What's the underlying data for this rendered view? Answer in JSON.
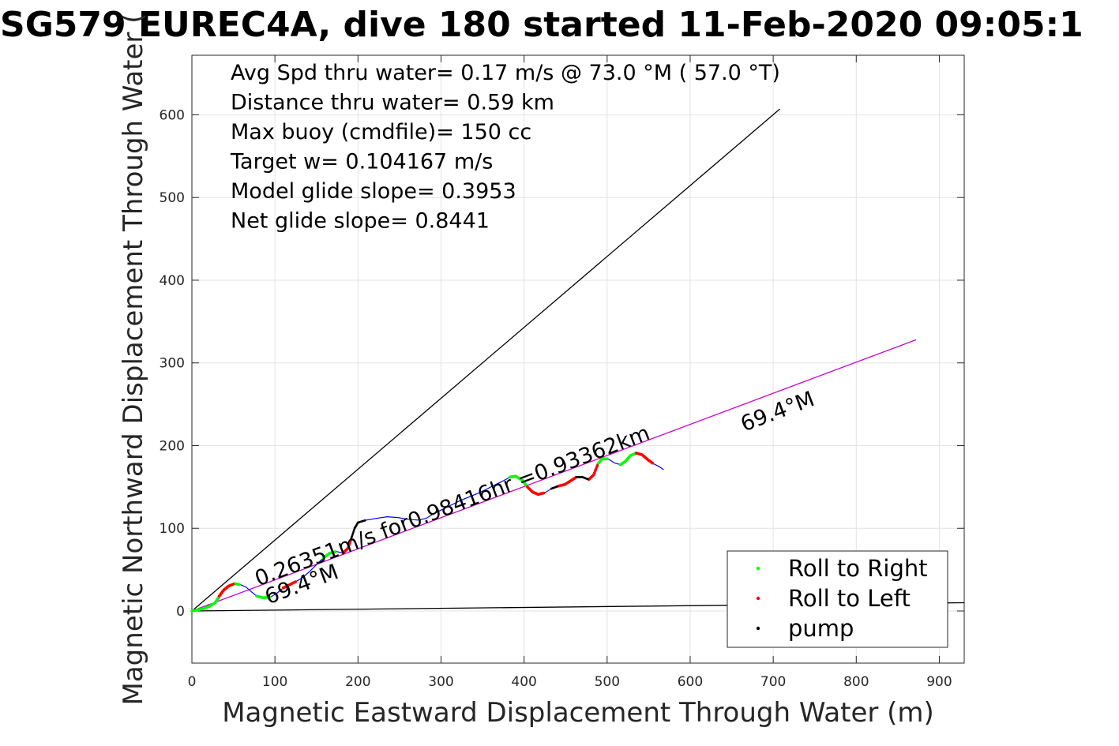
{
  "chart_data": {
    "type": "line",
    "title": "SG579 EUREC4A, dive 180 started 11-Feb-2020 09:05:1",
    "xlabel": "Magnetic Eastward Displacement Through Water (m)",
    "ylabel": "Magnetic Northward Displacement Through Water (",
    "xlim": [
      0,
      930
    ],
    "ylim": [
      -63,
      672
    ],
    "xticks": [
      0,
      100,
      200,
      300,
      400,
      500,
      600,
      700,
      800,
      900
    ],
    "yticks": [
      0,
      100,
      200,
      300,
      400,
      500,
      600
    ],
    "grid": true,
    "info_lines": [
      "Avg Spd thru water=  0.17 m/s @  73.0 °M ( 57.0 °T)",
      "Distance thru water=  0.59 km",
      "Max buoy (cmdfile)= 150 cc",
      "Target w= 0.104167 m/s",
      "Model glide slope= 0.3953",
      "Net glide slope= 0.8441"
    ],
    "annotations": [
      {
        "text": "0.26351m/s for0.98416hr =0.93362km",
        "x": 80,
        "y": 30,
        "angle": -20.6
      },
      {
        "text": "69.4°M",
        "x": 92,
        "y": 8,
        "angle": -20.6
      },
      {
        "text": "69.4°M",
        "x": 665,
        "y": 217,
        "angle": -20.6
      }
    ],
    "guide_lines": [
      {
        "name": "heading-line-upper",
        "color": "#000000",
        "points": [
          [
            0,
            0
          ],
          [
            708,
            607
          ]
        ]
      },
      {
        "name": "heading-line-lower",
        "color": "#000000",
        "points": [
          [
            0,
            0
          ],
          [
            930,
            10
          ]
        ]
      },
      {
        "name": "course-line",
        "color": "#cc00cc",
        "points": [
          [
            0,
            0
          ],
          [
            872,
            328
          ]
        ]
      }
    ],
    "track": {
      "name": "track",
      "color": "#0000ee",
      "points": [
        [
          0,
          0
        ],
        [
          10,
          2
        ],
        [
          20,
          5
        ],
        [
          28,
          10
        ],
        [
          33,
          18
        ],
        [
          38,
          25
        ],
        [
          44,
          30
        ],
        [
          51,
          33
        ],
        [
          58,
          32
        ],
        [
          65,
          29
        ],
        [
          72,
          23
        ],
        [
          78,
          18
        ],
        [
          86,
          16
        ],
        [
          95,
          17
        ],
        [
          103,
          22
        ],
        [
          110,
          28
        ],
        [
          118,
          32
        ],
        [
          126,
          36
        ],
        [
          134,
          41
        ],
        [
          142,
          48
        ],
        [
          150,
          56
        ],
        [
          158,
          64
        ],
        [
          166,
          70
        ],
        [
          174,
          72
        ],
        [
          182,
          70
        ],
        [
          188,
          76
        ],
        [
          192,
          88
        ],
        [
          196,
          100
        ],
        [
          200,
          107
        ],
        [
          210,
          110
        ],
        [
          222,
          112
        ],
        [
          235,
          114
        ],
        [
          248,
          113
        ],
        [
          260,
          111
        ],
        [
          272,
          110
        ],
        [
          282,
          112
        ],
        [
          290,
          117
        ],
        [
          300,
          122
        ],
        [
          310,
          127
        ],
        [
          322,
          133
        ],
        [
          334,
          138
        ],
        [
          346,
          143
        ],
        [
          356,
          148
        ],
        [
          366,
          153
        ],
        [
          376,
          158
        ],
        [
          383,
          162
        ],
        [
          390,
          163
        ],
        [
          398,
          158
        ],
        [
          404,
          150
        ],
        [
          410,
          144
        ],
        [
          417,
          141
        ],
        [
          425,
          143
        ],
        [
          433,
          148
        ],
        [
          441,
          151
        ],
        [
          449,
          153
        ],
        [
          457,
          158
        ],
        [
          463,
          162
        ],
        [
          470,
          162
        ],
        [
          478,
          159
        ],
        [
          484,
          165
        ],
        [
          489,
          178
        ],
        [
          494,
          184
        ],
        [
          501,
          184
        ],
        [
          509,
          179
        ],
        [
          516,
          177
        ],
        [
          522,
          181
        ],
        [
          528,
          188
        ],
        [
          535,
          191
        ],
        [
          542,
          189
        ],
        [
          549,
          183
        ],
        [
          556,
          178
        ],
        [
          562,
          175
        ],
        [
          568,
          171
        ]
      ]
    },
    "roll_right_ranges": [
      [
        0,
        8
      ],
      [
        11,
        13
      ],
      [
        21,
        23
      ],
      [
        45,
        48
      ],
      [
        60,
        62
      ],
      [
        64,
        67
      ]
    ],
    "roll_left_ranges": [
      [
        4,
        7
      ],
      [
        15,
        17
      ],
      [
        24,
        26
      ],
      [
        48,
        51
      ],
      [
        53,
        56
      ],
      [
        58,
        60
      ],
      [
        67,
        70
      ]
    ],
    "pump_ranges": [
      [
        26,
        29
      ],
      [
        52,
        53
      ],
      [
        56,
        58
      ]
    ],
    "legend": {
      "position": "bottom-right",
      "entries": [
        {
          "label": "Roll to Right",
          "color": "#00ff00"
        },
        {
          "label": "Roll to Left",
          "color": "#ff0000"
        },
        {
          "label": "pump",
          "color": "#000000"
        }
      ]
    }
  }
}
